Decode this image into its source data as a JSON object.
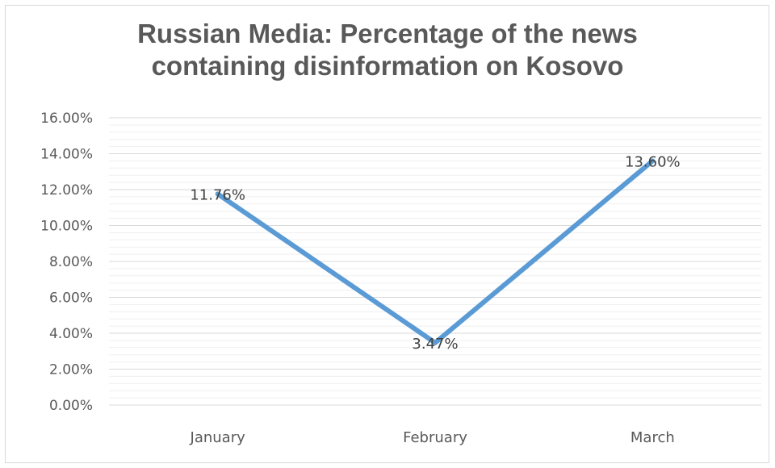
{
  "chart_data": {
    "type": "line",
    "title": "Russian Media: Percentage of the news containing disinformation on Kosovo",
    "title_lines": [
      "Russian Media: Percentage of the news",
      "containing disinformation on Kosovo"
    ],
    "categories": [
      "January",
      "February",
      "March"
    ],
    "series": [
      {
        "values": [
          11.76,
          3.47,
          13.6
        ],
        "data_labels": [
          "11.76%",
          "3.47%",
          "13.60%"
        ],
        "color": "#5b9bd5"
      }
    ],
    "y_ticks": [
      "0.00%",
      "2.00%",
      "4.00%",
      "6.00%",
      "8.00%",
      "10.00%",
      "12.00%",
      "14.00%",
      "16.00%"
    ],
    "ylim": [
      0,
      16
    ],
    "grid": true,
    "legend": "none",
    "xlabel": "",
    "ylabel": ""
  },
  "colors": {
    "line": "#5b9bd5",
    "gridline": "#d9d9d9",
    "text": "#595959"
  }
}
